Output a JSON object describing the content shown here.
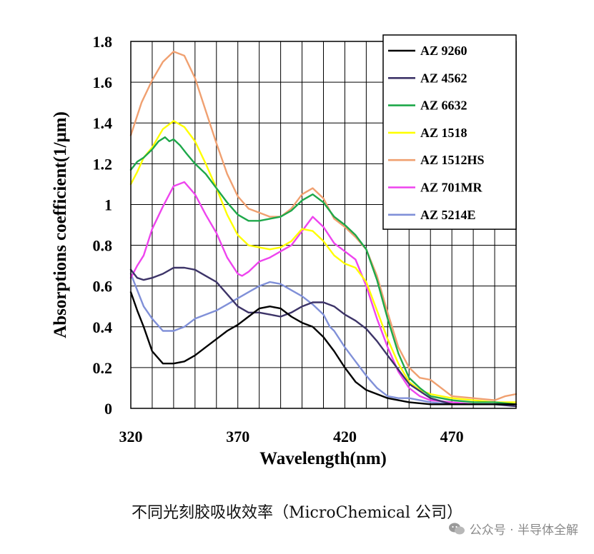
{
  "caption": "不同光刻胶吸收效率（MicroChemical 公司）",
  "watermark": "公众号 · 半导体全解",
  "chart_data": {
    "type": "line",
    "title": "",
    "xlabel": "Wavelength(nm)",
    "ylabel": "Absorptions coefficient(1/μm)",
    "xlim": [
      320,
      500
    ],
    "ylim": [
      0,
      1.8
    ],
    "xticks": [
      320,
      370,
      420,
      470
    ],
    "yticks": [
      0,
      0.2,
      0.4,
      0.6,
      0.8,
      1,
      1.2,
      1.4,
      1.6,
      1.8
    ],
    "ytick_labels": [
      "0",
      "0.2",
      "0.4",
      "0.6",
      "0.8",
      "1",
      "1.2",
      "1.4",
      "1.6",
      "1.8"
    ],
    "grid": true,
    "legend_position": "top-right",
    "series": [
      {
        "name": "AZ 9260",
        "color": "#000000",
        "x": [
          320,
          323,
          326,
          330,
          335,
          340,
          345,
          350,
          355,
          360,
          365,
          370,
          375,
          380,
          385,
          390,
          395,
          400,
          405,
          410,
          415,
          420,
          425,
          430,
          435,
          440,
          445,
          450,
          460,
          470,
          480,
          490,
          500
        ],
        "y": [
          0.57,
          0.48,
          0.4,
          0.28,
          0.22,
          0.22,
          0.23,
          0.26,
          0.3,
          0.34,
          0.38,
          0.41,
          0.45,
          0.49,
          0.5,
          0.49,
          0.45,
          0.42,
          0.4,
          0.35,
          0.28,
          0.2,
          0.13,
          0.09,
          0.07,
          0.05,
          0.04,
          0.03,
          0.02,
          0.02,
          0.02,
          0.02,
          0.02
        ]
      },
      {
        "name": "AZ 4562",
        "color": "#3d3468",
        "x": [
          320,
          323,
          326,
          330,
          335,
          340,
          345,
          350,
          355,
          360,
          365,
          370,
          375,
          380,
          385,
          390,
          395,
          400,
          405,
          410,
          415,
          420,
          425,
          430,
          435,
          440,
          445,
          450,
          460,
          470,
          480,
          490,
          500
        ],
        "y": [
          0.68,
          0.64,
          0.63,
          0.64,
          0.66,
          0.69,
          0.69,
          0.68,
          0.65,
          0.62,
          0.56,
          0.5,
          0.47,
          0.47,
          0.46,
          0.45,
          0.47,
          0.5,
          0.52,
          0.52,
          0.5,
          0.46,
          0.43,
          0.39,
          0.33,
          0.26,
          0.19,
          0.12,
          0.05,
          0.02,
          0.02,
          0.02,
          0.01
        ]
      },
      {
        "name": "AZ 6632",
        "color": "#1ea84a",
        "x": [
          320,
          323,
          326,
          330,
          333,
          336,
          338,
          340,
          343,
          346,
          350,
          355,
          360,
          365,
          370,
          375,
          380,
          385,
          390,
          395,
          400,
          405,
          410,
          415,
          420,
          425,
          430,
          435,
          440,
          445,
          450,
          455,
          460,
          470,
          480,
          490,
          500
        ],
        "y": [
          1.17,
          1.21,
          1.23,
          1.27,
          1.31,
          1.33,
          1.31,
          1.32,
          1.29,
          1.25,
          1.2,
          1.15,
          1.08,
          1.01,
          0.95,
          0.92,
          0.92,
          0.93,
          0.94,
          0.97,
          1.02,
          1.05,
          1.01,
          0.94,
          0.9,
          0.85,
          0.78,
          0.63,
          0.44,
          0.27,
          0.15,
          0.1,
          0.06,
          0.04,
          0.03,
          0.03,
          0.02
        ]
      },
      {
        "name": "AZ 1518",
        "color": "#ffff00",
        "x": [
          320,
          323,
          326,
          330,
          335,
          340,
          345,
          350,
          355,
          360,
          365,
          370,
          375,
          380,
          385,
          390,
          395,
          400,
          405,
          410,
          415,
          420,
          425,
          430,
          435,
          440,
          445,
          450,
          455,
          460,
          470,
          480,
          490,
          500
        ],
        "y": [
          1.1,
          1.16,
          1.23,
          1.28,
          1.37,
          1.41,
          1.38,
          1.31,
          1.2,
          1.08,
          0.95,
          0.85,
          0.8,
          0.79,
          0.78,
          0.79,
          0.82,
          0.88,
          0.87,
          0.82,
          0.75,
          0.71,
          0.69,
          0.62,
          0.48,
          0.34,
          0.22,
          0.13,
          0.09,
          0.07,
          0.05,
          0.04,
          0.03,
          0.03
        ]
      },
      {
        "name": "AZ 1512HS",
        "color": "#f0a070",
        "x": [
          320,
          325,
          330,
          335,
          340,
          345,
          350,
          355,
          360,
          365,
          370,
          375,
          380,
          385,
          390,
          395,
          400,
          405,
          410,
          415,
          420,
          425,
          430,
          435,
          440,
          445,
          450,
          455,
          460,
          465,
          470,
          480,
          490,
          495,
          500
        ],
        "y": [
          1.34,
          1.5,
          1.61,
          1.7,
          1.75,
          1.73,
          1.62,
          1.46,
          1.3,
          1.15,
          1.04,
          0.98,
          0.96,
          0.94,
          0.94,
          0.98,
          1.05,
          1.08,
          1.03,
          0.93,
          0.89,
          0.84,
          0.78,
          0.65,
          0.47,
          0.3,
          0.2,
          0.15,
          0.14,
          0.1,
          0.06,
          0.05,
          0.04,
          0.06,
          0.07
        ]
      },
      {
        "name": "AZ 701MR",
        "color": "#ee44ee",
        "x": [
          320,
          323,
          326,
          330,
          335,
          340,
          345,
          350,
          355,
          360,
          365,
          370,
          372,
          375,
          380,
          385,
          390,
          395,
          400,
          405,
          410,
          415,
          420,
          425,
          430,
          435,
          440,
          445,
          450,
          455,
          460,
          470,
          480,
          490,
          500
        ],
        "y": [
          0.64,
          0.7,
          0.75,
          0.88,
          0.99,
          1.09,
          1.11,
          1.05,
          0.95,
          0.86,
          0.74,
          0.66,
          0.65,
          0.67,
          0.72,
          0.74,
          0.77,
          0.8,
          0.87,
          0.94,
          0.89,
          0.81,
          0.77,
          0.73,
          0.6,
          0.44,
          0.3,
          0.18,
          0.1,
          0.06,
          0.04,
          0.03,
          0.02,
          0.02,
          0.02
        ]
      },
      {
        "name": "AZ 5214E",
        "color": "#8090d8",
        "x": [
          320,
          323,
          326,
          330,
          335,
          340,
          345,
          350,
          355,
          360,
          365,
          370,
          375,
          380,
          385,
          390,
          395,
          400,
          405,
          410,
          413,
          415,
          420,
          425,
          430,
          435,
          440,
          445,
          450,
          460,
          470,
          480,
          490,
          500
        ],
        "y": [
          0.66,
          0.58,
          0.5,
          0.44,
          0.38,
          0.38,
          0.4,
          0.44,
          0.46,
          0.48,
          0.51,
          0.54,
          0.57,
          0.6,
          0.62,
          0.61,
          0.58,
          0.55,
          0.51,
          0.46,
          0.4,
          0.38,
          0.3,
          0.23,
          0.16,
          0.1,
          0.06,
          0.05,
          0.05,
          0.03,
          0.02,
          0.02,
          0.02,
          0.02
        ]
      }
    ]
  }
}
